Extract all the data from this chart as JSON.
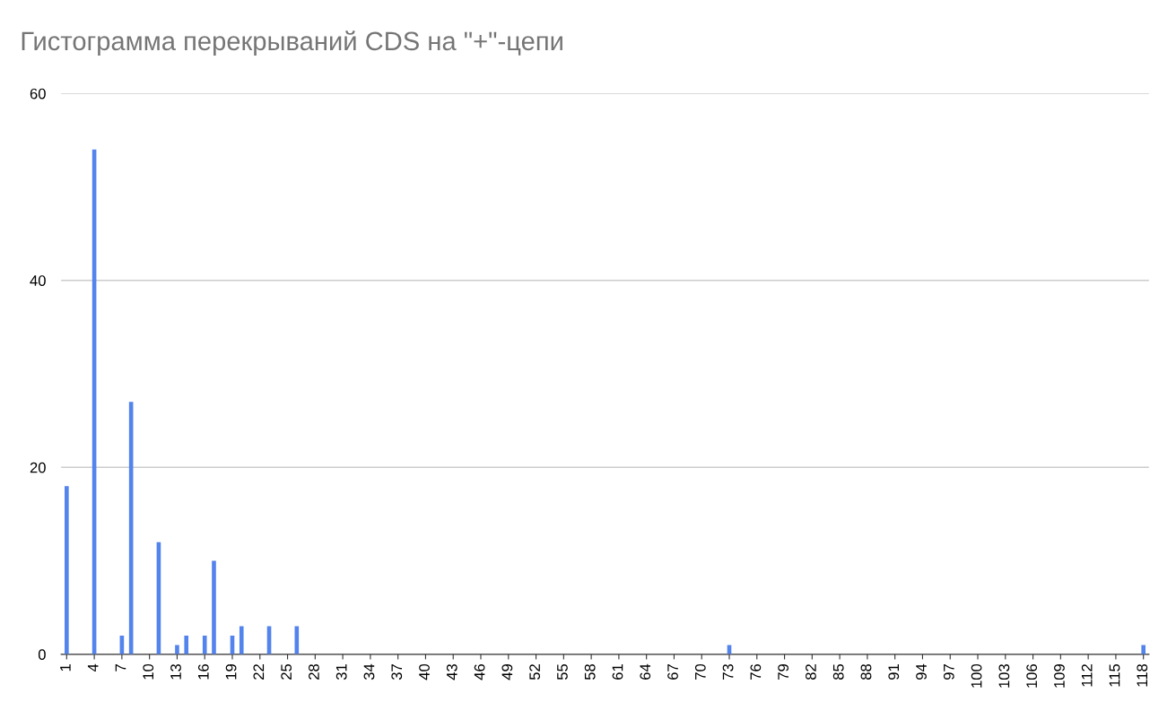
{
  "chart_data": {
    "type": "bar",
    "title": "Гистограмма перекрываний CDS на \"+\"-цепи",
    "categories": [
      "1",
      null,
      null,
      "4",
      null,
      null,
      "7",
      null,
      null,
      "10",
      null,
      null,
      "13",
      null,
      null,
      "16",
      null,
      null,
      "19",
      null,
      null,
      "22",
      null,
      null,
      "25",
      null,
      null,
      "28",
      null,
      null,
      "31",
      null,
      null,
      "34",
      null,
      null,
      "37",
      null,
      null,
      "40",
      null,
      null,
      "43",
      null,
      null,
      "46",
      null,
      null,
      "49",
      null,
      null,
      "52",
      null,
      null,
      "55",
      null,
      null,
      "58",
      null,
      null,
      "61",
      null,
      null,
      "64",
      null,
      null,
      "67",
      null,
      null,
      "70",
      null,
      null,
      "73",
      null,
      null,
      "76",
      null,
      null,
      "79",
      null,
      null,
      "82",
      null,
      null,
      "85",
      null,
      null,
      "88",
      null,
      null,
      "91",
      null,
      null,
      "94",
      null,
      null,
      "97",
      null,
      null,
      "100",
      null,
      null,
      "103",
      null,
      null,
      "106",
      null,
      null,
      "109",
      null,
      null,
      "112",
      null,
      null,
      "115",
      null,
      null,
      "118"
    ],
    "values": [
      18,
      0,
      0,
      54,
      0,
      0,
      2,
      27,
      0,
      0,
      12,
      0,
      1,
      2,
      0,
      2,
      10,
      0,
      2,
      3,
      0,
      0,
      3,
      0,
      0,
      3,
      0,
      0,
      0,
      0,
      0,
      0,
      0,
      0,
      0,
      0,
      0,
      0,
      0,
      0,
      0,
      0,
      0,
      0,
      0,
      0,
      0,
      0,
      0,
      0,
      0,
      0,
      0,
      0,
      0,
      0,
      0,
      0,
      0,
      0,
      0,
      0,
      0,
      0,
      0,
      0,
      0,
      0,
      0,
      0,
      0,
      0,
      1,
      0,
      0,
      0,
      0,
      0,
      0,
      0,
      0,
      0,
      0,
      0,
      0,
      0,
      0,
      0,
      0,
      0,
      0,
      0,
      0,
      0,
      0,
      0,
      0,
      0,
      0,
      0,
      0,
      0,
      0,
      0,
      0,
      0,
      0,
      0,
      0,
      0,
      0,
      0,
      0,
      0,
      0,
      0,
      0,
      1
    ],
    "color": "#5383ec",
    "ylim": [
      0,
      60
    ],
    "yticks": [
      0,
      20,
      40,
      60
    ],
    "grid": "y"
  }
}
